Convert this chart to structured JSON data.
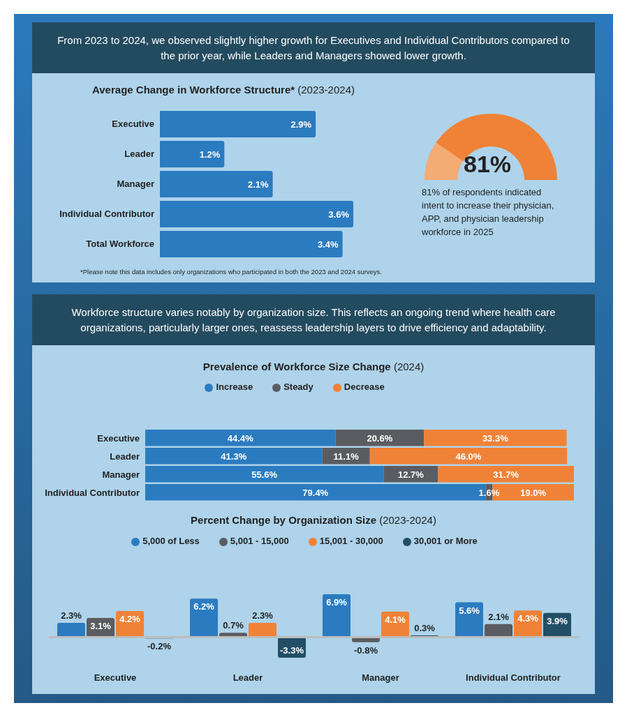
{
  "chart_data": [
    {
      "type": "other",
      "title": "From 2023 to 2024, we observed slightly higher growth for Executives and Individual Contributors compared to the prior year, while Leaders and Managers showed lower growth."
    },
    {
      "type": "bar",
      "orientation": "horizontal",
      "title": "Average Change in Workforce Structure* (2023-2024)",
      "categories": [
        "Executive",
        "Leader",
        "Manager",
        "Individual Contributor",
        "Total Workforce"
      ],
      "values": [
        2.9,
        1.2,
        2.1,
        3.6,
        3.4
      ],
      "value_labels": [
        "2.9%",
        "1.2%",
        "2.1%",
        "3.6%",
        "3.4%"
      ],
      "color": "#2b7bc0",
      "annotations": [
        "*Please note this data includes only organizations who participated in both the 2023 and 2024 surveys."
      ]
    },
    {
      "type": "donut",
      "categories": [
        null,
        null
      ],
      "values": [
        19,
        81
      ],
      "colors": [
        "#f5ab74",
        "#f08237"
      ],
      "annotations": [
        "81%",
        "81% of respondents indicated intent to increase their physician, APP, and physician leadership workforce in 2025"
      ]
    },
    {
      "type": "other",
      "title": "Workforce structure varies notably by organization size. This reflects an ongoing trend where health care organizations, particularly larger ones, reassess leadership layers to drive efficiency and adaptability."
    },
    {
      "type": "bar",
      "orientation": "horizontal",
      "stacked": true,
      "title": "Prevalence of Workforce Size Change (2024)",
      "legend": "top",
      "categories": [
        "Executive",
        "Leader",
        "Manager",
        "Individual Contributor"
      ],
      "series": [
        {
          "name": "Increase",
          "color": "#2b7bc0",
          "values": [
            44.4,
            41.3,
            55.6,
            79.4
          ],
          "value_labels": [
            "44.4%",
            "41.3%",
            "55.6%",
            "79.4%"
          ]
        },
        {
          "name": "Steady",
          "color": "#5b5c61",
          "values": [
            20.6,
            11.1,
            12.7,
            1.6
          ],
          "value_labels": [
            "20.6%",
            "11.1%",
            "12.7%",
            "1.6%"
          ]
        },
        {
          "name": "Decrease",
          "color": "#f08237",
          "values": [
            33.3,
            46.0,
            31.7,
            19.0
          ],
          "value_labels": [
            "33.3%",
            "46.0%",
            "31.7%",
            "19.0%"
          ]
        }
      ]
    },
    {
      "type": "bar",
      "title": "Percent Change by Organization Size (2023-2024)",
      "legend": "top",
      "categories": [
        "Executive",
        "Leader",
        "Manager",
        "Individual Contributor"
      ],
      "series": [
        {
          "name": "5,000 of Less",
          "color": "#2b7bc0",
          "values": [
            2.3,
            6.2,
            6.9,
            5.6
          ],
          "value_labels": [
            "2.3%",
            "6.2%",
            "6.9%",
            "5.6%"
          ]
        },
        {
          "name": "5,001 - 15,000",
          "color": "#5b5c61",
          "values": [
            3.1,
            0.7,
            -0.8,
            2.1
          ],
          "value_labels": [
            "3.1%",
            "0.7%",
            "-0.8%",
            "2.1%"
          ]
        },
        {
          "name": "15,001 - 30,000",
          "color": "#f08237",
          "values": [
            4.2,
            2.3,
            4.1,
            4.3
          ],
          "value_labels": [
            "4.2%",
            "2.3%",
            "4.1%",
            "4.3%"
          ]
        },
        {
          "name": "30,001 or More",
          "color": "#234f66",
          "values": [
            -0.2,
            -3.3,
            0.3,
            3.9
          ],
          "value_labels": [
            "-0.2%",
            "-3.3%",
            "0.3%",
            "3.9%"
          ]
        }
      ]
    }
  ]
}
